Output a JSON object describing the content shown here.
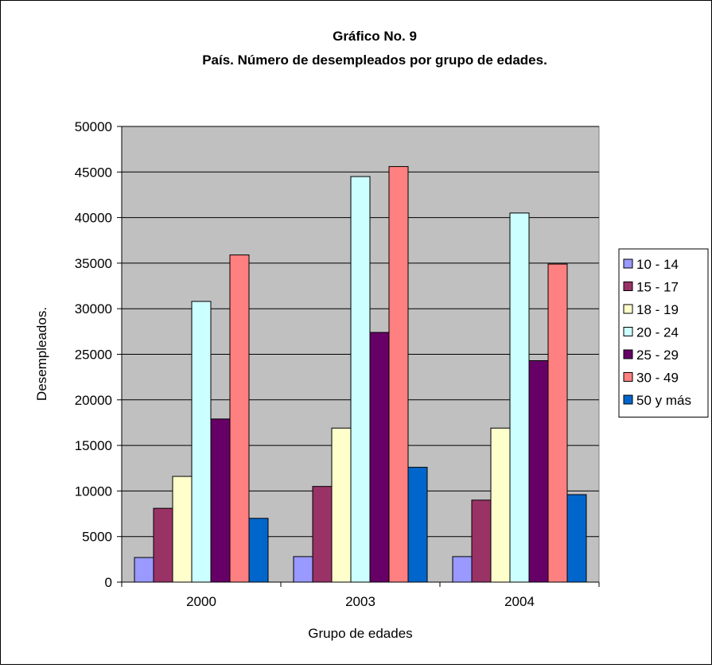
{
  "chart_data": {
    "type": "bar",
    "title": "Gráfico No. 9",
    "subtitle": "País. Número de desempleados por grupo de edades.",
    "xlabel": "Grupo de edades",
    "ylabel": "Desempleados.",
    "categories": [
      "2000",
      "2003",
      "2004"
    ],
    "ylim": [
      0,
      50000
    ],
    "yticks": [
      "0",
      "5000",
      "10000",
      "15000",
      "20000",
      "25000",
      "30000",
      "35000",
      "40000",
      "45000",
      "50000"
    ],
    "grid": true,
    "plot_background": "#c0c0c0",
    "legend_position": "right",
    "series": [
      {
        "name": "10 - 14",
        "color": "#9999ff",
        "values": [
          2700,
          2800,
          2800
        ]
      },
      {
        "name": "15 - 17",
        "color": "#993366",
        "values": [
          8100,
          10500,
          9000
        ]
      },
      {
        "name": "18 - 19",
        "color": "#ffffcc",
        "values": [
          11600,
          16900,
          16900
        ]
      },
      {
        "name": "20 - 24",
        "color": "#ccffff",
        "values": [
          30800,
          44500,
          40500
        ]
      },
      {
        "name": "25 - 29",
        "color": "#660066",
        "values": [
          17900,
          27400,
          24300
        ]
      },
      {
        "name": "30 - 49",
        "color": "#ff8080",
        "values": [
          35900,
          45600,
          34900
        ]
      },
      {
        "name": "50 y más",
        "color": "#0066cc",
        "values": [
          7000,
          12600,
          9600
        ]
      }
    ]
  }
}
